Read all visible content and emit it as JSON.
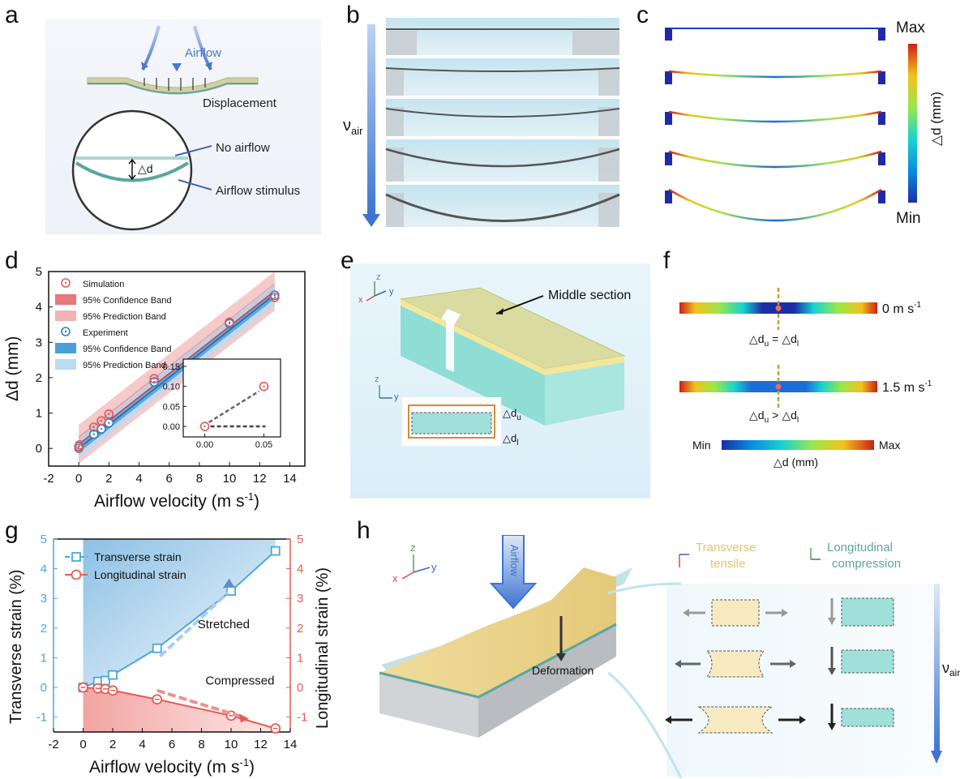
{
  "panel_letters": [
    "a",
    "b",
    "c",
    "d",
    "e",
    "f",
    "g",
    "h"
  ],
  "a": {
    "airflow": "Airflow",
    "displacement": "Displacement",
    "delta_d": "△d",
    "no_airflow": "No airflow",
    "airflow_stimulus": "Airflow stimulus"
  },
  "b": {
    "v_symbol": "ν",
    "v_sub": "air"
  },
  "c": {
    "max": "Max",
    "min": "Min",
    "axis": "△d (mm)"
  },
  "e": {
    "middle_section": "Middle section",
    "axis_z": "z",
    "axis_y": "y",
    "axis_x": "x",
    "du": "△d",
    "du_sub": "u",
    "dl": "△d",
    "dl_sub": "l"
  },
  "f": {
    "speed1": "0 m s",
    "speed1_sup": "-1",
    "speed2": "1.5 m s",
    "speed2_sup": "-1",
    "eq1": "△d",
    "eq_rel1": "=",
    "eq2": "△d",
    "eq_rel2": ">",
    "min": "Min",
    "max": "Max",
    "axis": "△d (mm)",
    "sub_u": "u",
    "sub_l": "l"
  },
  "h": {
    "airflow": "Airflow",
    "deformation": "Deformation",
    "transverse_tensile_1": "Transverse",
    "transverse_tensile_2": "tensile",
    "longitudinal_1": "Longitudinal",
    "longitudinal_2": "compression",
    "v_symbol": "ν",
    "v_sub": "air",
    "axis_z": "z",
    "axis_x": "x",
    "axis_y": "y"
  },
  "colors": {
    "sim": "#e8575a",
    "exp": "#2a7fc4",
    "transverse": "#4aa7de",
    "longitudinal": "#e85a55",
    "yellow": "#f3e3a8",
    "cyan": "#9fe0da"
  },
  "chart_data": [
    {
      "id": "d",
      "type": "scatter",
      "xlabel": "Airflow velocity (m s",
      "xlabel_sup": "-1",
      "xlabel_end": ")",
      "ylabel": "Δd (mm)",
      "xlim": [
        -2,
        15
      ],
      "ylim": [
        -0.5,
        5
      ],
      "xticks": [
        "-2",
        "0",
        "2",
        "4",
        "6",
        "8",
        "10",
        "12",
        "14"
      ],
      "xtick_values": [
        -2,
        0,
        2,
        4,
        6,
        8,
        10,
        12,
        14
      ],
      "yticks": [
        "0",
        "1",
        "2",
        "3",
        "4",
        "5"
      ],
      "ytick_values": [
        0,
        1,
        2,
        3,
        4,
        5
      ],
      "legend": [
        "Simulation",
        "95% Confidence Band",
        "95% Prediction Band",
        "Experiment",
        "95% Confidence Band",
        "95% Prediction Band"
      ],
      "series": [
        {
          "name": "Simulation",
          "x": [
            0,
            0.05,
            1,
            1.5,
            2,
            5,
            10,
            13
          ],
          "y": [
            0,
            0.1,
            0.6,
            0.78,
            0.97,
            1.97,
            3.57,
            4.27
          ]
        },
        {
          "name": "Experiment",
          "x": [
            0,
            1,
            1.5,
            2,
            5,
            10,
            13
          ],
          "y": [
            0.05,
            0.4,
            0.55,
            0.72,
            1.88,
            3.53,
            4.33
          ]
        }
      ],
      "inset": {
        "xticks": [
          "0.00",
          "0.05"
        ],
        "xtick_values": [
          0,
          0.05
        ],
        "yticks": [
          "0.00",
          "0.05",
          "0.10",
          "0.15"
        ],
        "ytick_values": [
          0,
          0.05,
          0.1,
          0.15
        ],
        "points": [
          {
            "x": 0.0,
            "y": 0.0
          },
          {
            "x": 0.05,
            "y": 0.1
          }
        ]
      }
    },
    {
      "id": "g",
      "type": "line",
      "xlabel": "Airflow velocity (m s",
      "xlabel_sup": "-1",
      "xlabel_end": ")",
      "ylabel": "Transverse strain (%)",
      "y2label": "Longitudinal strain (%)",
      "xlim": [
        -2,
        14
      ],
      "ylim": [
        -1.5,
        5
      ],
      "xticks": [
        "-2",
        "0",
        "2",
        "4",
        "6",
        "8",
        "10",
        "12",
        "14"
      ],
      "xtick_values": [
        -2,
        0,
        2,
        4,
        6,
        8,
        10,
        12,
        14
      ],
      "yticks": [
        "-1",
        "0",
        "1",
        "2",
        "3",
        "4",
        "5"
      ],
      "ytick_values": [
        -1,
        0,
        1,
        2,
        3,
        4,
        5
      ],
      "series": [
        {
          "name": "Transverse strain",
          "x": [
            0,
            1,
            1.5,
            2,
            5,
            10,
            13
          ],
          "y": [
            0,
            0.2,
            0.23,
            0.42,
            1.32,
            3.25,
            4.6
          ]
        },
        {
          "name": "Longitudinal strain",
          "x": [
            0,
            1,
            1.5,
            2,
            5,
            10,
            13
          ],
          "y": [
            0,
            -0.03,
            -0.05,
            -0.1,
            -0.4,
            -0.95,
            -1.38
          ]
        }
      ],
      "annotations": [
        "Stretched",
        "Compressed"
      ]
    }
  ]
}
